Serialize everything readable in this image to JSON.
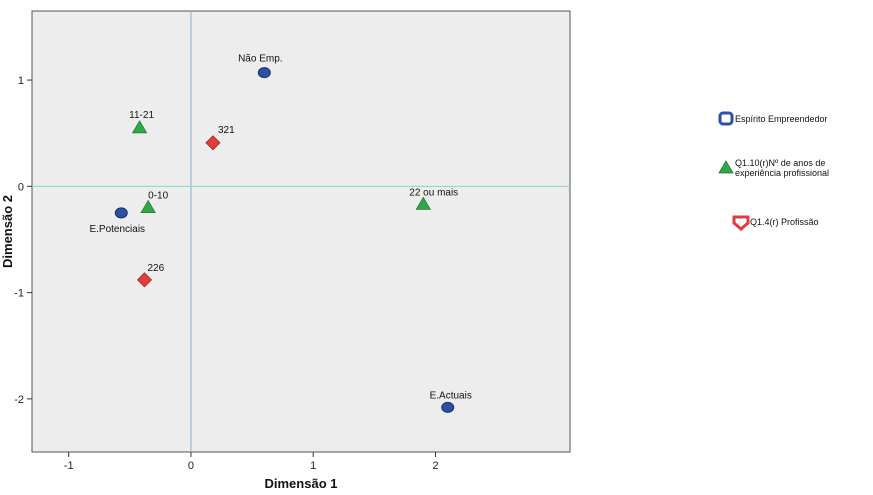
{
  "chart_data": {
    "type": "scatter",
    "title": "",
    "xlabel": "Dimensão 1",
    "ylabel": "Dimensão 2",
    "xlim": [
      -1.3,
      3.1
    ],
    "ylim": [
      -2.5,
      1.65
    ],
    "x_ticks": [
      -1,
      0,
      1,
      2
    ],
    "y_ticks": [
      1,
      0,
      -1,
      -2
    ],
    "reference_lines": {
      "x": 0,
      "y": 0
    },
    "grid": false,
    "legend_position": "right",
    "series": [
      {
        "name": "Espírito Empreendedor",
        "marker": "circle",
        "color": "#2f4fa0",
        "points": [
          {
            "x": 0.6,
            "y": 1.07,
            "label": "Não Emp."
          },
          {
            "x": -0.57,
            "y": -0.25,
            "label": "E.Potenciais"
          },
          {
            "x": 2.1,
            "y": -2.08,
            "label": "E.Actuais"
          }
        ]
      },
      {
        "name": "Q1.10(r)Nº de anos de experiência profissional",
        "legend_lines": [
          "Q1.10(r)Nº de anos de",
          "experiência profissional"
        ],
        "marker": "triangle",
        "color": "#2fa84a",
        "points": [
          {
            "x": -0.42,
            "y": 0.55,
            "label": "11-21"
          },
          {
            "x": -0.35,
            "y": -0.2,
            "label": "0-10"
          },
          {
            "x": 1.9,
            "y": -0.17,
            "label": "22 ou mais"
          }
        ]
      },
      {
        "name": "Q1.4(r) Profissão",
        "marker": "diamond",
        "color": "#e23b3b",
        "points": [
          {
            "x": 0.18,
            "y": 0.41,
            "label": "321"
          },
          {
            "x": -0.38,
            "y": -0.88,
            "label": "226"
          }
        ]
      }
    ]
  }
}
